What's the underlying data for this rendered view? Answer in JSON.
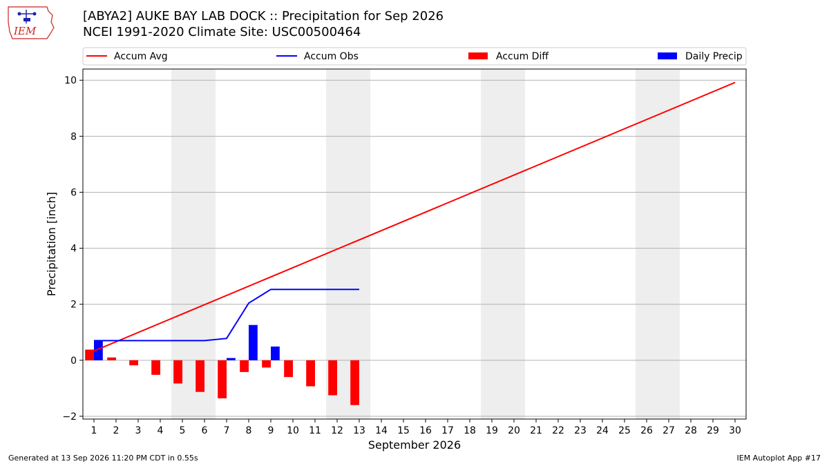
{
  "header": {
    "title_line1": "[ABYA2] AUKE BAY LAB DOCK :: Precipitation for Sep 2026",
    "title_line2": "NCEI 1991-2020 Climate Site: USC00500464"
  },
  "logo": {
    "text": "IEM",
    "color": "#cc2222"
  },
  "footer": {
    "generated": "Generated at 13 Sep 2026 11:20 PM CDT in 0.55s",
    "app": "IEM Autoplot App #17"
  },
  "colors": {
    "accum_avg": "#ff0000",
    "accum_obs": "#0000ff",
    "accum_diff": "#ff0000",
    "daily_precip": "#0000ff",
    "weekend_shade": "#eeeeee",
    "grid": "#b0b0b0"
  },
  "chart_data": {
    "type": "bar",
    "xlabel": "September 2026",
    "ylabel": "Precipitation [inch]",
    "xlim": [
      0.5,
      30.5
    ],
    "ylim": [
      -2.1,
      10.4
    ],
    "yticks": [
      -2,
      0,
      2,
      4,
      6,
      8,
      10
    ],
    "xticks": [
      1,
      2,
      3,
      4,
      5,
      6,
      7,
      8,
      9,
      10,
      11,
      12,
      13,
      14,
      15,
      16,
      17,
      18,
      19,
      20,
      21,
      22,
      23,
      24,
      25,
      26,
      27,
      28,
      29,
      30
    ],
    "grid": "horizontal",
    "legend_placement": "top",
    "legend": [
      "Accum Avg",
      "Accum Obs",
      "Accum Diff",
      "Daily Precip"
    ],
    "weekends": [
      [
        5,
        6
      ],
      [
        12,
        13
      ],
      [
        19,
        20
      ],
      [
        26,
        27
      ]
    ],
    "series": [
      {
        "name": "Accum Avg",
        "type": "line",
        "x": [
          1,
          30
        ],
        "values": [
          0.33,
          9.92
        ]
      },
      {
        "name": "Accum Obs",
        "type": "line",
        "x": [
          1,
          2,
          3,
          4,
          5,
          6,
          7,
          8,
          9,
          10,
          11,
          12,
          13
        ],
        "values": [
          0.7,
          0.7,
          0.7,
          0.7,
          0.7,
          0.7,
          0.78,
          2.04,
          2.53,
          2.53,
          2.53,
          2.53,
          2.53
        ]
      },
      {
        "name": "Accum Diff",
        "type": "bar",
        "x": [
          1,
          2,
          3,
          4,
          5,
          6,
          7,
          8,
          9,
          10,
          11,
          12,
          13
        ],
        "values": [
          0.38,
          0.1,
          -0.18,
          -0.52,
          -0.83,
          -1.13,
          -1.36,
          -0.42,
          -0.26,
          -0.6,
          -0.93,
          -1.25,
          -1.6
        ]
      },
      {
        "name": "Daily Precip",
        "type": "bar",
        "x": [
          1,
          2,
          3,
          4,
          5,
          6,
          7,
          8,
          9,
          10,
          11,
          12,
          13
        ],
        "values": [
          0.7,
          0,
          0,
          0,
          0,
          0,
          0.08,
          1.26,
          0.49,
          0,
          0,
          0,
          0
        ]
      }
    ]
  }
}
